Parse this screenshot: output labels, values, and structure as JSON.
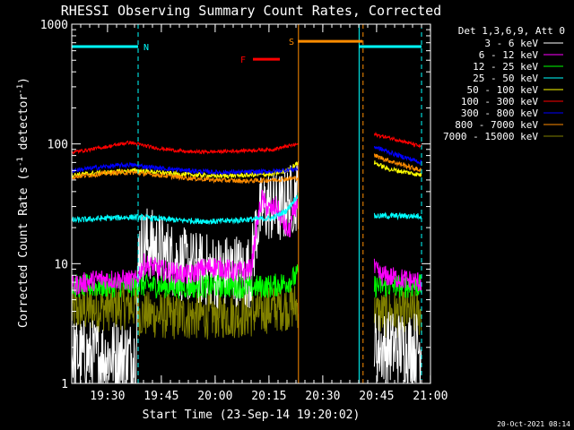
{
  "chart_data": {
    "type": "line",
    "title": "RHESSI Observing Summary Count Rates, Corrected",
    "xlabel": "Start Time (23-Sep-14 19:20:02)",
    "ylabel": "Corrected Count Rate (s⁻¹ detector⁻¹)",
    "ylabel_parts": {
      "main": "Corrected Count Rate (s",
      "sup1": "-1",
      "mid": " detector",
      "sup2": "-1",
      "end": ")"
    },
    "y_scale": "log",
    "ylim": [
      1,
      1000
    ],
    "xlim_minutes": [
      0,
      100
    ],
    "x_ticks": [
      {
        "label": "19:30",
        "minute": 9.97
      },
      {
        "label": "19:45",
        "minute": 24.97
      },
      {
        "label": "20:00",
        "minute": 39.97
      },
      {
        "label": "20:15",
        "minute": 54.97
      },
      {
        "label": "20:30",
        "minute": 69.97
      },
      {
        "label": "20:45",
        "minute": 84.97
      },
      {
        "label": "21:00",
        "minute": 99.97
      }
    ],
    "y_ticks": [
      {
        "label": "1",
        "value": 1
      },
      {
        "label": "10",
        "value": 10
      },
      {
        "label": "100",
        "value": 100
      },
      {
        "label": "1000",
        "value": 1000
      }
    ],
    "legend_title": "Det 1,3,6,9, Att 0",
    "legend_placement": "right",
    "timestamp": "20-Oct-2021 08:14",
    "annotations": {
      "night_bars": [
        {
          "minute_start": 0,
          "minute_end": 18.5,
          "value": 650
        },
        {
          "minute_start": 80,
          "minute_end": 97.5,
          "value": 650
        }
      ],
      "night_label": "N",
      "saa_bar": {
        "minute_start": 63,
        "minute_end": 81,
        "value": 720
      },
      "saa_label": "S",
      "flare_bar": {
        "minute_start": 50.5,
        "minute_end": 58,
        "value": 510
      },
      "flare_label": "F",
      "solid_lines": [
        {
          "minute": 0,
          "color": "#00ffff"
        },
        {
          "minute": 63.2,
          "color": "#ff8c00"
        },
        {
          "minute": 80.1,
          "color": "#00ffff"
        }
      ],
      "dashed_lines": [
        {
          "minute": 18.5,
          "color": "#00ffff"
        },
        {
          "minute": 81.2,
          "color": "#ff8c00"
        },
        {
          "minute": 97.5,
          "color": "#00ffff"
        }
      ]
    },
    "data_gaps_minutes": [
      [
        63.2,
        84.3
      ]
    ],
    "series": [
      {
        "name": "3 - 6 keV",
        "color": "#ffffff",
        "noise": 0.45,
        "kind": "low",
        "points": [
          [
            0,
            1.7
          ],
          [
            18,
            1.7
          ],
          [
            18.6,
            13
          ],
          [
            21,
            15
          ],
          [
            26,
            12
          ],
          [
            30,
            10
          ],
          [
            36,
            9
          ],
          [
            42,
            8.5
          ],
          [
            46,
            9
          ],
          [
            48,
            8
          ],
          [
            50,
            9
          ],
          [
            51.5,
            20
          ],
          [
            53,
            28
          ],
          [
            55,
            31
          ],
          [
            57,
            28
          ],
          [
            59,
            30
          ],
          [
            62,
            36
          ],
          [
            63.2,
            40
          ],
          [
            84.3,
            2
          ],
          [
            97.5,
            2
          ]
        ]
      },
      {
        "name": "6 - 12 keV",
        "color": "#ff00ff",
        "noise": 0.18,
        "kind": "line",
        "points": [
          [
            0,
            6.5
          ],
          [
            8,
            7.5
          ],
          [
            18,
            7.2
          ],
          [
            20,
            10
          ],
          [
            24,
            9
          ],
          [
            28,
            8.5
          ],
          [
            33,
            8
          ],
          [
            36,
            9
          ],
          [
            40,
            9.5
          ],
          [
            46,
            8.5
          ],
          [
            50,
            9
          ],
          [
            51.5,
            20
          ],
          [
            53,
            35
          ],
          [
            55,
            28
          ],
          [
            57,
            30
          ],
          [
            59,
            22
          ],
          [
            60.5,
            18
          ],
          [
            62,
            28
          ],
          [
            63.2,
            35
          ],
          [
            84.3,
            9
          ],
          [
            86,
            8
          ],
          [
            97.5,
            7
          ]
        ]
      },
      {
        "name": "12 - 25 keV",
        "color": "#00ff00",
        "noise": 0.2,
        "kind": "line",
        "points": [
          [
            0,
            6.5
          ],
          [
            10,
            6.5
          ],
          [
            18,
            6.6
          ],
          [
            30,
            6.4
          ],
          [
            40,
            6.5
          ],
          [
            50,
            6.4
          ],
          [
            56,
            6.5
          ],
          [
            60,
            7
          ],
          [
            63.2,
            8
          ],
          [
            84.3,
            6.5
          ],
          [
            97.5,
            6.5
          ]
        ]
      },
      {
        "name": "25 - 50 keV",
        "color": "#00ffff",
        "noise": 0.05,
        "kind": "line",
        "points": [
          [
            0,
            23
          ],
          [
            10,
            24
          ],
          [
            18,
            24.5
          ],
          [
            30,
            23
          ],
          [
            40,
            22.5
          ],
          [
            50,
            23.5
          ],
          [
            56,
            24
          ],
          [
            60,
            28
          ],
          [
            63.2,
            38
          ],
          [
            84.3,
            25
          ],
          [
            97.5,
            25
          ]
        ]
      },
      {
        "name": "50 - 100 keV",
        "color": "#ffff00",
        "noise": 0.04,
        "kind": "line",
        "points": [
          [
            0,
            55
          ],
          [
            10,
            58
          ],
          [
            18,
            60
          ],
          [
            30,
            56
          ],
          [
            40,
            54
          ],
          [
            50,
            55
          ],
          [
            56,
            56
          ],
          [
            60,
            60
          ],
          [
            63.2,
            70
          ],
          [
            84.3,
            70
          ],
          [
            88,
            62
          ],
          [
            97.5,
            55
          ]
        ]
      },
      {
        "name": "100 - 300 keV",
        "color": "#ff0000",
        "noise": 0.03,
        "kind": "line",
        "points": [
          [
            0,
            85
          ],
          [
            10,
            95
          ],
          [
            16,
            103
          ],
          [
            24,
            92
          ],
          [
            32,
            86
          ],
          [
            40,
            86
          ],
          [
            48,
            88
          ],
          [
            56,
            90
          ],
          [
            63.2,
            100
          ],
          [
            84.3,
            120
          ],
          [
            90,
            110
          ],
          [
            97.5,
            95
          ]
        ]
      },
      {
        "name": "300 - 800 keV",
        "color": "#0000ff",
        "noise": 0.04,
        "kind": "line",
        "points": [
          [
            0,
            60
          ],
          [
            10,
            65
          ],
          [
            16,
            67
          ],
          [
            24,
            63
          ],
          [
            32,
            60
          ],
          [
            40,
            58
          ],
          [
            48,
            58
          ],
          [
            56,
            59
          ],
          [
            63.2,
            62
          ],
          [
            84.3,
            95
          ],
          [
            90,
            82
          ],
          [
            97.5,
            70
          ]
        ]
      },
      {
        "name": "800 - 7000 keV",
        "color": "#ff8c00",
        "noise": 0.04,
        "kind": "line",
        "points": [
          [
            0,
            53
          ],
          [
            10,
            57
          ],
          [
            16,
            58
          ],
          [
            24,
            55
          ],
          [
            32,
            52
          ],
          [
            40,
            50
          ],
          [
            48,
            49
          ],
          [
            56,
            50
          ],
          [
            63.2,
            52
          ],
          [
            84.3,
            80
          ],
          [
            90,
            70
          ],
          [
            97.5,
            60
          ]
        ]
      },
      {
        "name": "7000 - 15000 keV",
        "color": "#808000",
        "noise": 0.4,
        "kind": "noisy",
        "points": [
          [
            0,
            4
          ],
          [
            10,
            4.3
          ],
          [
            18,
            4.5
          ],
          [
            19,
            3.8
          ],
          [
            30,
            3.6
          ],
          [
            40,
            3.7
          ],
          [
            50,
            3.8
          ],
          [
            56,
            4.2
          ],
          [
            63.2,
            4.5
          ],
          [
            84.3,
            3.8
          ],
          [
            97.5,
            3.8
          ]
        ]
      }
    ]
  }
}
